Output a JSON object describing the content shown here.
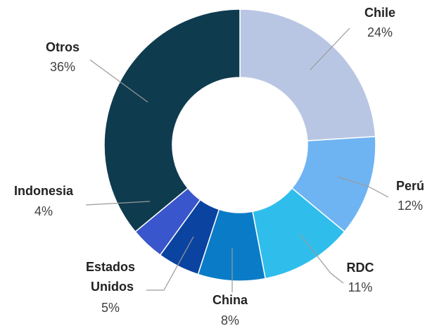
{
  "chart_data": {
    "type": "pie",
    "categories": [
      "Chile",
      "Perú",
      "RDC",
      "China",
      "Estados Unidos",
      "Indonesia",
      "Otros"
    ],
    "values": [
      24,
      12,
      11,
      8,
      5,
      4,
      36
    ],
    "value_labels": [
      "24%",
      "12%",
      "11%",
      "8%",
      "5%",
      "4%",
      "36%"
    ],
    "colors": [
      "#b9c6e3",
      "#6fb4f2",
      "#2fbdec",
      "#0a7cc7",
      "#0b43a0",
      "#3a56cc",
      "#0f3b4f"
    ]
  }
}
